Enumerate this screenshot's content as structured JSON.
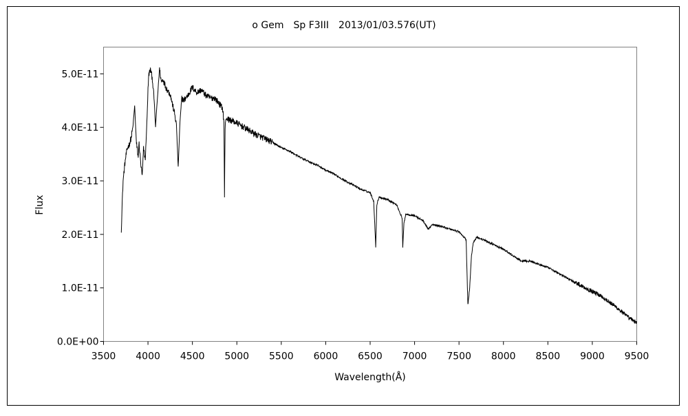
{
  "chart_data": {
    "type": "line",
    "title": "ο Gem　Sp F3III　2013/01/03.576(UT)",
    "xlabel": "Wavelength(Å)",
    "ylabel": "Flux",
    "xlim": [
      3500,
      9500
    ],
    "ylim": [
      0,
      5.5e-11
    ],
    "x_ticks": [
      3500,
      4000,
      4500,
      5000,
      5500,
      6000,
      6500,
      7000,
      7500,
      8000,
      8500,
      9000,
      9500
    ],
    "x_tick_labels": [
      "3500",
      "4000",
      "4500",
      "5000",
      "5500",
      "6000",
      "6500",
      "7000",
      "7500",
      "8000",
      "8500",
      "9000",
      "9500"
    ],
    "y_ticks": [
      0,
      1e-11,
      2e-11,
      3e-11,
      4e-11,
      5e-11
    ],
    "y_tick_labels": [
      "0.0E+00",
      "1.0E-11",
      "2.0E-11",
      "3.0E-11",
      "4.0E-11",
      "5.0E-11"
    ],
    "grid": false,
    "legend": "none",
    "line_color": "#000000",
    "series": [
      {
        "x": [
          3700,
          3710,
          3720,
          3735,
          3750,
          3770,
          3790,
          3810,
          3830,
          3850,
          3870,
          3890,
          3900,
          3920,
          3935,
          3950,
          3970,
          3990,
          4000,
          4010,
          4030,
          4050,
          4070,
          4085,
          4100,
          4130,
          4150,
          4170,
          4200,
          4250,
          4300,
          4320,
          4340,
          4360,
          4380,
          4400,
          4450,
          4500,
          4550,
          4600,
          4650,
          4700,
          4750,
          4800,
          4840,
          4855,
          4861,
          4868,
          4880,
          4900,
          4950,
          5000,
          5100,
          5200,
          5300,
          5400,
          5500,
          5600,
          5700,
          5800,
          5893,
          5900,
          6000,
          6100,
          6200,
          6300,
          6400,
          6500,
          6540,
          6563,
          6575,
          6600,
          6700,
          6800,
          6860,
          6867,
          6880,
          6900,
          7000,
          7100,
          7150,
          7200,
          7300,
          7400,
          7500,
          7580,
          7600,
          7620,
          7640,
          7660,
          7700,
          7800,
          8000,
          8200,
          8300,
          8500,
          8700,
          8900,
          9100,
          9300,
          9400,
          9500
        ],
        "y": [
          2.05e-11,
          2.6e-11,
          3e-11,
          3.25e-11,
          3.45e-11,
          3.62e-11,
          3.68e-11,
          3.8e-11,
          4e-11,
          4.4e-11,
          3.7e-11,
          3.45e-11,
          3.7e-11,
          3.3e-11,
          3.1e-11,
          3.6e-11,
          3.4e-11,
          4.2e-11,
          4.7e-11,
          5e-11,
          5.08e-11,
          4.9e-11,
          4.5e-11,
          4e-11,
          4.4e-11,
          5.1e-11,
          4.85e-11,
          4.9e-11,
          4.75e-11,
          4.62e-11,
          4.25e-11,
          4.05e-11,
          3.25e-11,
          4.1e-11,
          4.55e-11,
          4.5e-11,
          4.6e-11,
          4.75e-11,
          4.65e-11,
          4.7e-11,
          4.6e-11,
          4.55e-11,
          4.55e-11,
          4.45e-11,
          4.35e-11,
          4.1e-11,
          2.68e-11,
          4e-11,
          4.18e-11,
          4.15e-11,
          4.12e-11,
          4.08e-11,
          3.98e-11,
          3.88e-11,
          3.8e-11,
          3.72e-11,
          3.62e-11,
          3.55e-11,
          3.45e-11,
          3.37e-11,
          3.3e-11,
          3.3e-11,
          3.2e-11,
          3.12e-11,
          3.02e-11,
          2.93e-11,
          2.84e-11,
          2.78e-11,
          2.62e-11,
          1.76e-11,
          2.55e-11,
          2.7e-11,
          2.65e-11,
          2.55e-11,
          2.3e-11,
          1.75e-11,
          2.2e-11,
          2.38e-11,
          2.35e-11,
          2.25e-11,
          2.1e-11,
          2.18e-11,
          2.15e-11,
          2.1e-11,
          2.05e-11,
          1.9e-11,
          6.8e-12,
          1e-11,
          1.6e-11,
          1.85e-11,
          1.95e-11,
          1.88e-11,
          1.72e-11,
          1.5e-11,
          1.5e-11,
          1.38e-11,
          1.2e-11,
          1.02e-11,
          8.5e-12,
          6e-12,
          4.5e-12,
          3.5e-12
        ]
      }
    ]
  }
}
